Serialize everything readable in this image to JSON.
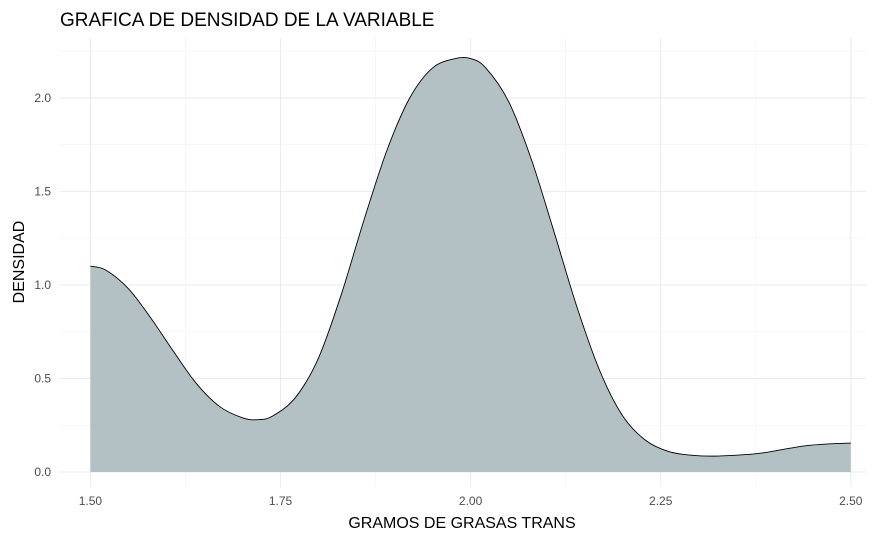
{
  "chart_data": {
    "type": "area",
    "title": "GRAFICA DE DENSIDAD DE LA VARIABLE",
    "xlabel": "GRAMOS DE GRASAS TRANS",
    "ylabel": "DENSIDAD",
    "xlim": [
      1.46,
      2.52
    ],
    "ylim": [
      -0.08,
      2.32
    ],
    "x_ticks": [
      1.5,
      1.75,
      2.0,
      2.25,
      2.5
    ],
    "x_tick_labels": [
      "1.50",
      "1.75",
      "2.00",
      "2.25",
      "2.50"
    ],
    "y_ticks": [
      0.0,
      0.5,
      1.0,
      1.5,
      2.0
    ],
    "y_tick_labels": [
      "0.0",
      "0.5",
      "1.0",
      "1.5",
      "2.0"
    ],
    "grid": true,
    "fill_color": "#b4c1c4",
    "line_color": "#000000",
    "series": [
      {
        "x": [
          1.5,
          1.52,
          1.55,
          1.58,
          1.61,
          1.64,
          1.67,
          1.7,
          1.72,
          1.74,
          1.77,
          1.8,
          1.83,
          1.86,
          1.89,
          1.92,
          1.95,
          1.98,
          2.0,
          2.02,
          2.05,
          2.08,
          2.11,
          2.14,
          2.17,
          2.2,
          2.23,
          2.26,
          2.29,
          2.32,
          2.35,
          2.38,
          2.41,
          2.44,
          2.47,
          2.5
        ],
        "y": [
          1.1,
          1.08,
          0.98,
          0.82,
          0.64,
          0.47,
          0.35,
          0.29,
          0.28,
          0.3,
          0.4,
          0.61,
          0.95,
          1.35,
          1.72,
          2.0,
          2.16,
          2.21,
          2.21,
          2.16,
          1.98,
          1.67,
          1.28,
          0.88,
          0.54,
          0.3,
          0.17,
          0.11,
          0.09,
          0.085,
          0.09,
          0.1,
          0.12,
          0.14,
          0.15,
          0.155
        ]
      }
    ]
  }
}
